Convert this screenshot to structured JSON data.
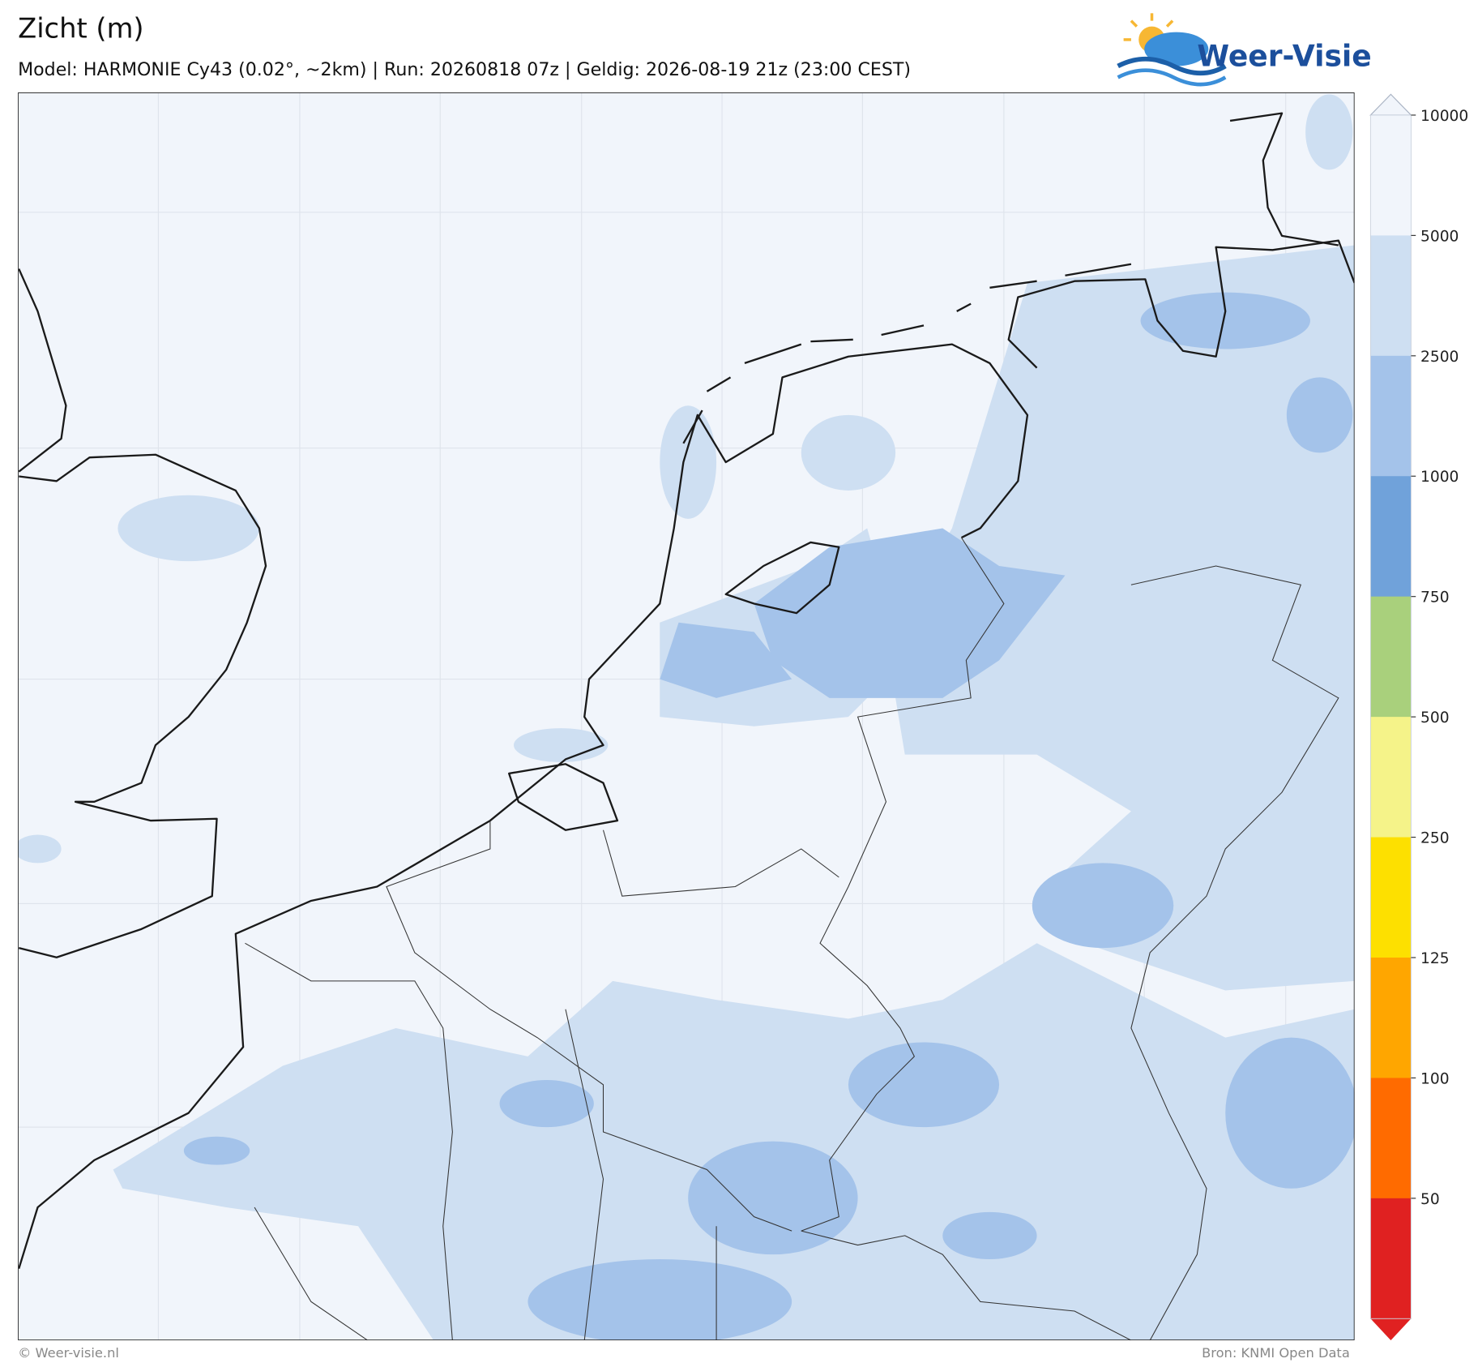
{
  "header": {
    "title": "Zicht (m)",
    "subtitle": "Model: HARMONIE Cy43 (0.02°, ~2km)  |  Run: 20260818 07z  |  Geldig: 2026-08-19 21z (23:00 CEST)"
  },
  "logo": {
    "text": "Weer-Visie"
  },
  "legend": {
    "levels": [
      10000,
      5000,
      2500,
      1000,
      750,
      500,
      250,
      125,
      100,
      50
    ],
    "colors": [
      "#f1f5fb",
      "#cedff2",
      "#a4c3ea",
      "#70a2da",
      "#a9d07c",
      "#f5f389",
      "#fde000",
      "#ffa600",
      "#ff6b00",
      "#e02121"
    ]
  },
  "footer": {
    "left": "© Weer-visie.nl",
    "right": "Bron: KNMI Open Data"
  }
}
